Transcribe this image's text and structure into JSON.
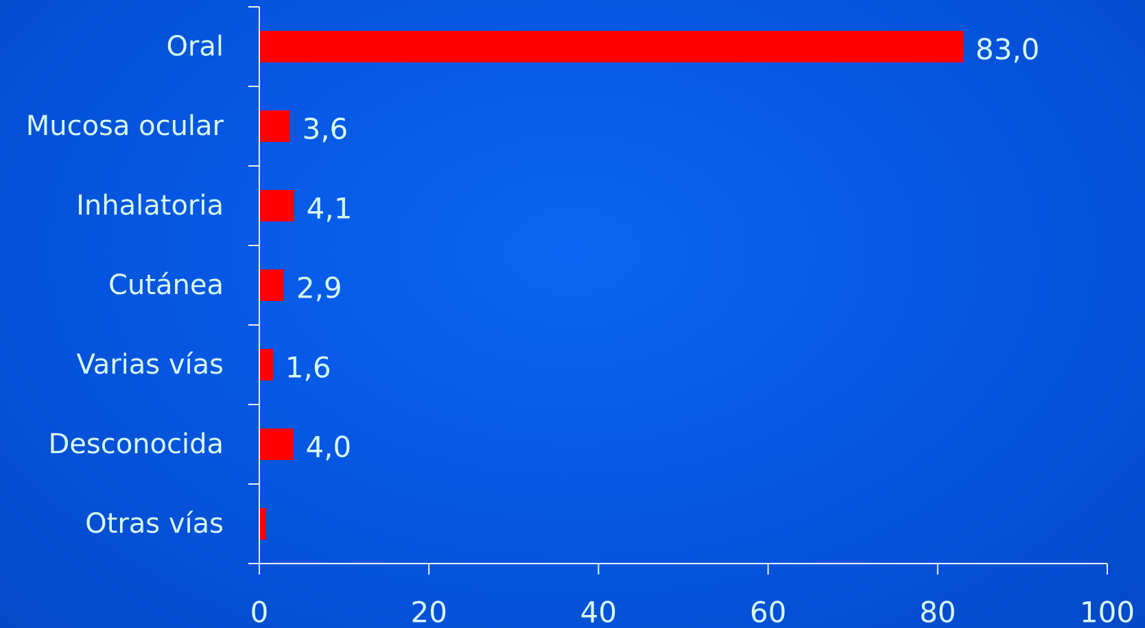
{
  "chart_data": {
    "type": "bar",
    "orientation": "horizontal",
    "title": "",
    "xlabel": "",
    "ylabel": "",
    "categories": [
      "Oral",
      "Mucosa ocular",
      "Inhalatoria",
      "Cutánea",
      "Varias vías",
      "Desconocida",
      "Otras vías"
    ],
    "values": [
      83.0,
      3.6,
      4.1,
      2.9,
      1.6,
      4.0,
      0.8
    ],
    "data_labels": [
      "83,0",
      "3,6",
      "4,1",
      "2,9",
      "1,6",
      "4,0",
      ""
    ],
    "xlim": [
      0,
      100
    ],
    "x_ticks": [
      0,
      20,
      40,
      60,
      80,
      100
    ],
    "x_tick_labels": [
      "0",
      "20",
      "40",
      "60",
      "80",
      "100"
    ],
    "grid": false,
    "legend": "none",
    "colors": {
      "bar": "#ff0000",
      "text": "#d8fbf4",
      "axis": "#e6f3ff"
    }
  }
}
